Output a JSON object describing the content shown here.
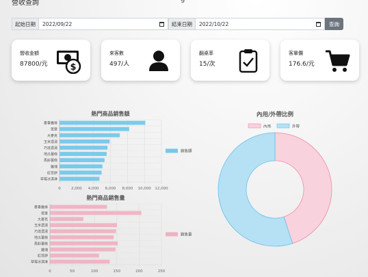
{
  "page": {
    "title": "營收查詢",
    "header_fragment": "g"
  },
  "filters": {
    "start_label": "起始日期",
    "start_value": "2022/09/22",
    "end_label": "結束日期",
    "end_value": "2022/10/22",
    "query_label": "查詢"
  },
  "cards": [
    {
      "label": "營收金額",
      "value": "87800/元",
      "icon": "money-bill-dollar-icon"
    },
    {
      "label": "來客數",
      "value": "497/人",
      "icon": "person-icon"
    },
    {
      "label": "翻桌率",
      "value": "15/次",
      "icon": "clipboard-check-icon"
    },
    {
      "label": "客單價",
      "value": "176.6/元",
      "icon": "shopping-cart-icon"
    }
  ],
  "chart_data": [
    {
      "type": "bar",
      "orientation": "horizontal",
      "title": "熱門商品銷售額",
      "categories": [
        "麥香雞排",
        "蛋堡",
        "大麥克",
        "玉米濃湯",
        "巧達濃湯",
        "地瓜薯條",
        "馬鈴薯條",
        "雞塊",
        "紅豆餅",
        "草莓冰淇淋"
      ],
      "series": [
        {
          "name": "銷售額",
          "values": [
            10100,
            8200,
            7100,
            5900,
            5650,
            5550,
            5300,
            5050,
            4950,
            4700
          ]
        }
      ],
      "xlim": [
        0,
        12000
      ],
      "xticks": [
        "0",
        "2,000",
        "4,000",
        "6,000",
        "8,000",
        "10,000",
        "12,000"
      ],
      "grid": true,
      "legend": "right",
      "color": "#74c7ea"
    },
    {
      "type": "bar",
      "orientation": "horizontal",
      "title": "熱門商品銷售量",
      "categories": [
        "麥香雞排",
        "蛋堡",
        "大麥克",
        "玉米濃湯",
        "巧達濃湯",
        "地瓜薯條",
        "馬鈴薯條",
        "雞塊",
        "紅豆餅",
        "草莓冰淇淋"
      ],
      "series": [
        {
          "name": "銷售量",
          "values": [
            128,
            205,
            75,
            150,
            148,
            143,
            152,
            147,
            110,
            134
          ]
        }
      ],
      "xlim": [
        0,
        250
      ],
      "xticks": [
        "0",
        "50",
        "100",
        "150",
        "200",
        "250"
      ],
      "grid": true,
      "legend": "right",
      "color": "#f0b2c3"
    },
    {
      "type": "pie",
      "variant": "doughnut",
      "title": "內用/外帶比例",
      "labels": [
        "內用",
        "外帶"
      ],
      "values": [
        45,
        55
      ],
      "colors": [
        "#f8d2dc",
        "#b6e0f4"
      ],
      "border_colors": [
        "#f28aa5",
        "#6bc0e8"
      ],
      "legend": "top"
    }
  ]
}
